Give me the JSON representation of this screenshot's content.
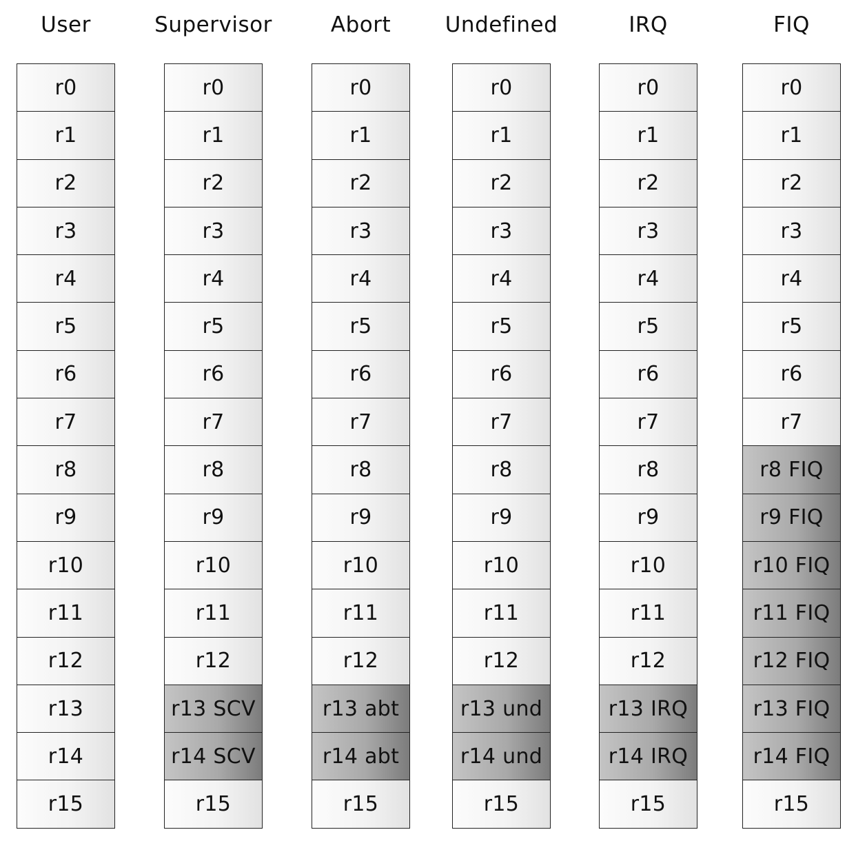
{
  "modes": [
    {
      "name": "User",
      "registers": [
        {
          "label": "r0"
        },
        {
          "label": "r1"
        },
        {
          "label": "r2"
        },
        {
          "label": "r3"
        },
        {
          "label": "r4"
        },
        {
          "label": "r5"
        },
        {
          "label": "r6"
        },
        {
          "label": "r7"
        },
        {
          "label": "r8"
        },
        {
          "label": "r9"
        },
        {
          "label": "r10"
        },
        {
          "label": "r11"
        },
        {
          "label": "r12"
        },
        {
          "label": "r13"
        },
        {
          "label": "r14"
        },
        {
          "label": "r15"
        }
      ]
    },
    {
      "name": "Supervisor",
      "registers": [
        {
          "label": "r0"
        },
        {
          "label": "r1"
        },
        {
          "label": "r2"
        },
        {
          "label": "r3"
        },
        {
          "label": "r4"
        },
        {
          "label": "r5"
        },
        {
          "label": "r6"
        },
        {
          "label": "r7"
        },
        {
          "label": "r8"
        },
        {
          "label": "r9"
        },
        {
          "label": "r10"
        },
        {
          "label": "r11"
        },
        {
          "label": "r12"
        },
        {
          "label": "r13 SCV",
          "banked": true
        },
        {
          "label": "r14 SCV",
          "banked": true
        },
        {
          "label": "r15"
        }
      ]
    },
    {
      "name": "Abort",
      "registers": [
        {
          "label": "r0"
        },
        {
          "label": "r1"
        },
        {
          "label": "r2"
        },
        {
          "label": "r3"
        },
        {
          "label": "r4"
        },
        {
          "label": "r5"
        },
        {
          "label": "r6"
        },
        {
          "label": "r7"
        },
        {
          "label": "r8"
        },
        {
          "label": "r9"
        },
        {
          "label": "r10"
        },
        {
          "label": "r11"
        },
        {
          "label": "r12"
        },
        {
          "label": "r13 abt",
          "banked": true
        },
        {
          "label": "r14 abt",
          "banked": true
        },
        {
          "label": "r15"
        }
      ]
    },
    {
      "name": "Undefined",
      "registers": [
        {
          "label": "r0"
        },
        {
          "label": "r1"
        },
        {
          "label": "r2"
        },
        {
          "label": "r3"
        },
        {
          "label": "r4"
        },
        {
          "label": "r5"
        },
        {
          "label": "r6"
        },
        {
          "label": "r7"
        },
        {
          "label": "r8"
        },
        {
          "label": "r9"
        },
        {
          "label": "r10"
        },
        {
          "label": "r11"
        },
        {
          "label": "r12"
        },
        {
          "label": "r13 und",
          "banked": true
        },
        {
          "label": "r14 und",
          "banked": true
        },
        {
          "label": "r15"
        }
      ]
    },
    {
      "name": "IRQ",
      "registers": [
        {
          "label": "r0"
        },
        {
          "label": "r1"
        },
        {
          "label": "r2"
        },
        {
          "label": "r3"
        },
        {
          "label": "r4"
        },
        {
          "label": "r5"
        },
        {
          "label": "r6"
        },
        {
          "label": "r7"
        },
        {
          "label": "r8"
        },
        {
          "label": "r9"
        },
        {
          "label": "r10"
        },
        {
          "label": "r11"
        },
        {
          "label": "r12"
        },
        {
          "label": "r13 IRQ",
          "banked": true
        },
        {
          "label": "r14 IRQ",
          "banked": true
        },
        {
          "label": "r15"
        }
      ]
    },
    {
      "name": "FIQ",
      "registers": [
        {
          "label": "r0"
        },
        {
          "label": "r1"
        },
        {
          "label": "r2"
        },
        {
          "label": "r3"
        },
        {
          "label": "r4"
        },
        {
          "label": "r5"
        },
        {
          "label": "r6"
        },
        {
          "label": "r7"
        },
        {
          "label": "r8 FIQ",
          "banked": true
        },
        {
          "label": "r9 FIQ",
          "banked": true
        },
        {
          "label": "r10 FIQ",
          "banked": true
        },
        {
          "label": "r11 FIQ",
          "banked": true
        },
        {
          "label": "r12 FIQ",
          "banked": true
        },
        {
          "label": "r13 FIQ",
          "banked": true
        },
        {
          "label": "r14 FIQ",
          "banked": true
        },
        {
          "label": "r15"
        }
      ]
    }
  ]
}
